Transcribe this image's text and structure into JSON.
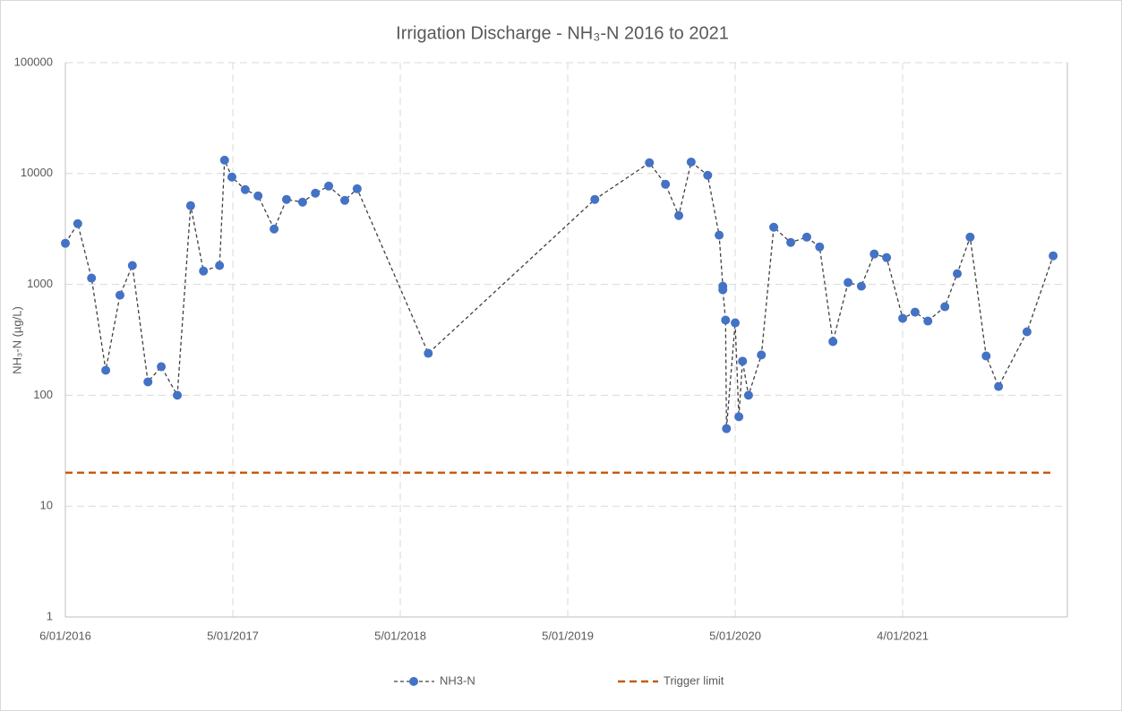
{
  "chart_data": {
    "type": "line",
    "title": "Irrigation Discharge - NH₃-N 2016 to 2021",
    "y_label": "NH₃-N (µg/L)",
    "log_scale_y": true,
    "grid": true,
    "legend": "bottom",
    "xlim": [
      "2016-01-06",
      "2021-12-29"
    ],
    "xticks": [
      {
        "value": "2016-01-06",
        "label": "6/01/2016"
      },
      {
        "value": "2017-01-05",
        "label": "5/01/2017"
      },
      {
        "value": "2018-01-05",
        "label": "5/01/2018"
      },
      {
        "value": "2019-01-05",
        "label": "5/01/2019"
      },
      {
        "value": "2020-01-05",
        "label": "5/01/2020"
      },
      {
        "value": "2021-01-04",
        "label": "4/01/2021"
      }
    ],
    "ylim": [
      1,
      100000
    ],
    "yticks": [
      1,
      10,
      100,
      1000,
      10000,
      100000
    ],
    "series": [
      {
        "name": "NH3-N",
        "color": "#4472c4",
        "line_color": "#404040",
        "markers": true,
        "x": [
          "2016-01-06",
          "2016-02-02",
          "2016-03-03",
          "2016-04-03",
          "2016-05-04",
          "2016-05-31",
          "2016-07-04",
          "2016-08-02",
          "2016-09-06",
          "2016-10-05",
          "2016-11-02",
          "2016-12-07",
          "2016-12-18",
          "2017-01-03",
          "2017-02-01",
          "2017-03-01",
          "2017-04-05",
          "2017-05-02",
          "2017-06-06",
          "2017-07-04",
          "2017-08-02",
          "2017-09-06",
          "2017-10-03",
          "2018-03-07",
          "2019-03-05",
          "2019-07-02",
          "2019-08-06",
          "2019-09-04",
          "2019-10-01",
          "2019-11-06",
          "2019-12-01",
          "2019-12-09",
          "2019-12-09",
          "2019-12-15",
          "2019-12-17",
          "2020-01-05",
          "2020-01-13",
          "2020-01-21",
          "2020-02-03",
          "2020-03-02",
          "2020-03-29",
          "2020-05-05",
          "2020-06-09",
          "2020-07-07",
          "2020-08-05",
          "2020-09-07",
          "2020-10-06",
          "2020-11-03",
          "2020-11-30",
          "2021-01-04",
          "2021-01-31",
          "2021-02-28",
          "2021-04-06",
          "2021-05-03",
          "2021-05-31",
          "2021-07-05",
          "2021-08-01",
          "2021-10-02",
          "2021-11-28"
        ],
        "values": [
          2350,
          3530,
          1140,
          168,
          800,
          1480,
          132,
          181,
          100,
          5130,
          1320,
          1480,
          13200,
          9290,
          7160,
          6290,
          3160,
          5840,
          5520,
          6650,
          7710,
          5730,
          7290,
          239,
          5840,
          12500,
          8000,
          4180,
          12700,
          9640,
          2780,
          963,
          895,
          476,
          50,
          450,
          64,
          203,
          100,
          231,
          3280,
          2390,
          2670,
          2180,
          305,
          1040,
          963,
          1880,
          1745,
          494,
          562,
          467,
          629,
          1250,
          2670,
          226,
          120,
          374,
          1810
        ]
      },
      {
        "name": "Trigger limit",
        "color": "#c55a11",
        "markers": false,
        "x": [
          "2016-01-06",
          "2021-11-28"
        ],
        "values": [
          20,
          20
        ]
      }
    ]
  }
}
